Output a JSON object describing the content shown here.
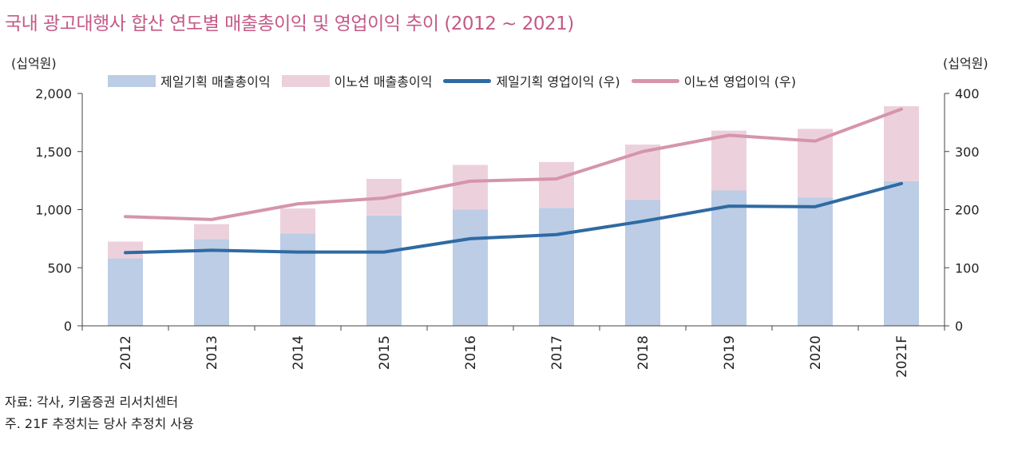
{
  "title": "국내 광고대행사 합산 연도별 매출총이익 및 영업이익 추이 (2012 ~ 2021)",
  "units": {
    "left": "(십억원)",
    "right": "(십억원)"
  },
  "notes": {
    "source": "자료: 각사, 키움증권 리서치센터",
    "note": "주. 21F 추정치는 당사 추정치 사용"
  },
  "colors": {
    "bar_cheil": "#bccde5",
    "bar_innocean": "#ecd1dc",
    "line_cheil": "#2f6aa3",
    "line_innocean": "#d595ab",
    "title": "#c45a86"
  },
  "chart_data": {
    "type": "bar",
    "categories": [
      "2012",
      "2013",
      "2014",
      "2015",
      "2016",
      "2017",
      "2018",
      "2019",
      "2020",
      "2021F"
    ],
    "series": [
      {
        "name": "제일기획 매출총이익",
        "kind": "bar",
        "axis": "left",
        "stacked": true,
        "values": [
          580,
          745,
          795,
          950,
          1000,
          1015,
          1085,
          1165,
          1105,
          1245
        ]
      },
      {
        "name": "이노션 매출총이익",
        "kind": "bar",
        "axis": "left",
        "stacked": true,
        "values": [
          145,
          130,
          215,
          315,
          385,
          395,
          475,
          515,
          590,
          645
        ]
      },
      {
        "name": "제일기획 영업이익 (우)",
        "kind": "line",
        "axis": "right",
        "values": [
          126,
          130,
          127,
          127,
          150,
          157,
          180,
          206,
          205,
          245
        ]
      },
      {
        "name": "이노션 영업이익 (우)",
        "kind": "line",
        "axis": "right",
        "values": [
          188,
          183,
          210,
          220,
          249,
          253,
          300,
          328,
          318,
          373
        ]
      }
    ],
    "y_left": {
      "range": [
        0,
        2000
      ],
      "ticks": [
        0,
        500,
        1000,
        1500,
        2000
      ],
      "tick_labels": [
        "0",
        "500",
        "1,000",
        "1,500",
        "2,000"
      ]
    },
    "y_right": {
      "range": [
        0,
        400
      ],
      "ticks": [
        0,
        100,
        200,
        300,
        400
      ],
      "tick_labels": [
        "0",
        "100",
        "200",
        "300",
        "400"
      ]
    },
    "grid": false,
    "legend": "top"
  }
}
